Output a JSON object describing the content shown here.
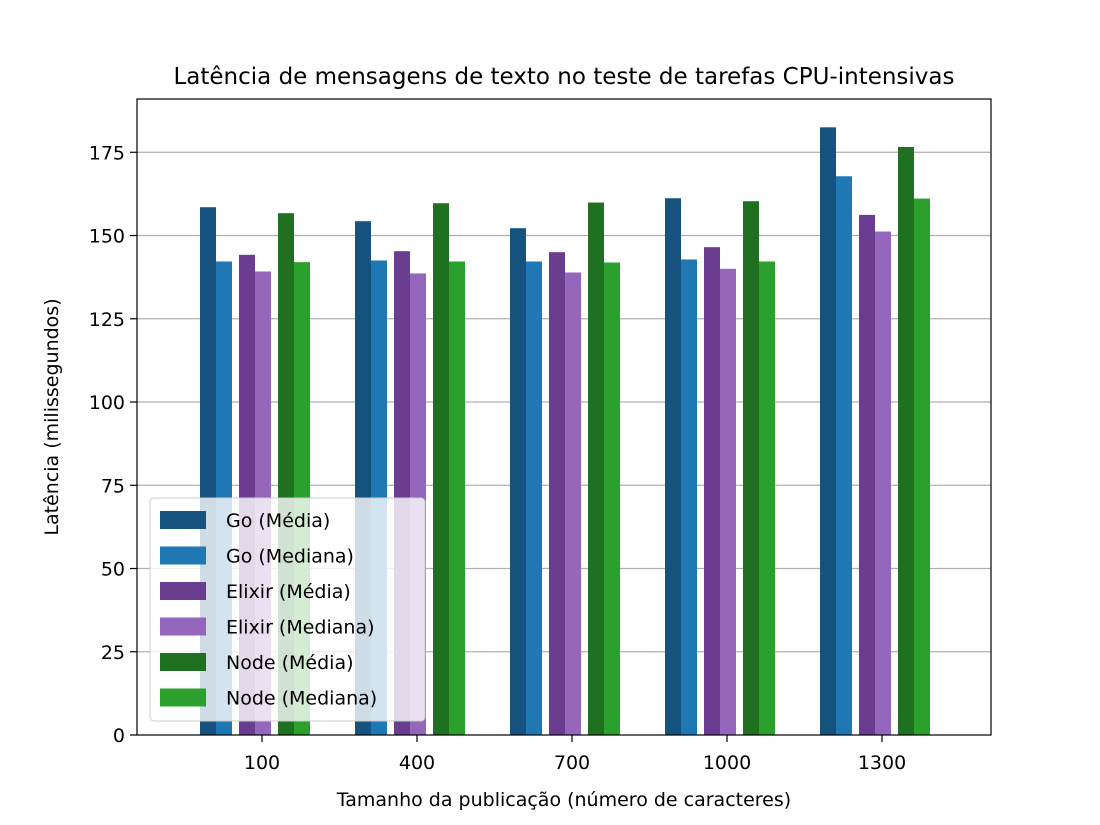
{
  "chart_data": {
    "type": "bar",
    "title": "Latência de mensagens de texto no teste de tarefas CPU-intensivas",
    "xlabel": "Tamanho da publicação (número de caracteres)",
    "ylabel": "Latência (milissegundos)",
    "categories": [
      "100",
      "400",
      "700",
      "1000",
      "1300"
    ],
    "ylim": [
      0,
      191
    ],
    "yticks": [
      0,
      25,
      50,
      75,
      100,
      125,
      150,
      175
    ],
    "grid": "y",
    "legend_position": "lower-left",
    "series": [
      {
        "name": "Go (Média)",
        "color": "#16527e",
        "values": [
          158.5,
          154.3,
          152.2,
          161.2,
          182.5
        ]
      },
      {
        "name": "Go (Mediana)",
        "color": "#1f77b4",
        "values": [
          142.2,
          142.5,
          142.2,
          142.8,
          167.8
        ]
      },
      {
        "name": "Elixir (Média)",
        "color": "#6a3d91",
        "values": [
          144.2,
          145.3,
          145.0,
          146.5,
          156.2
        ]
      },
      {
        "name": "Elixir (Mediana)",
        "color": "#9467bd",
        "values": [
          139.2,
          138.6,
          138.9,
          140.0,
          151.2
        ]
      },
      {
        "name": "Node (Média)",
        "color": "#1f7020",
        "values": [
          156.7,
          159.7,
          159.9,
          160.3,
          176.6
        ]
      },
      {
        "name": "Node (Mediana)",
        "color": "#2ca02c",
        "values": [
          142.0,
          142.2,
          141.9,
          142.2,
          161.1
        ]
      }
    ]
  }
}
